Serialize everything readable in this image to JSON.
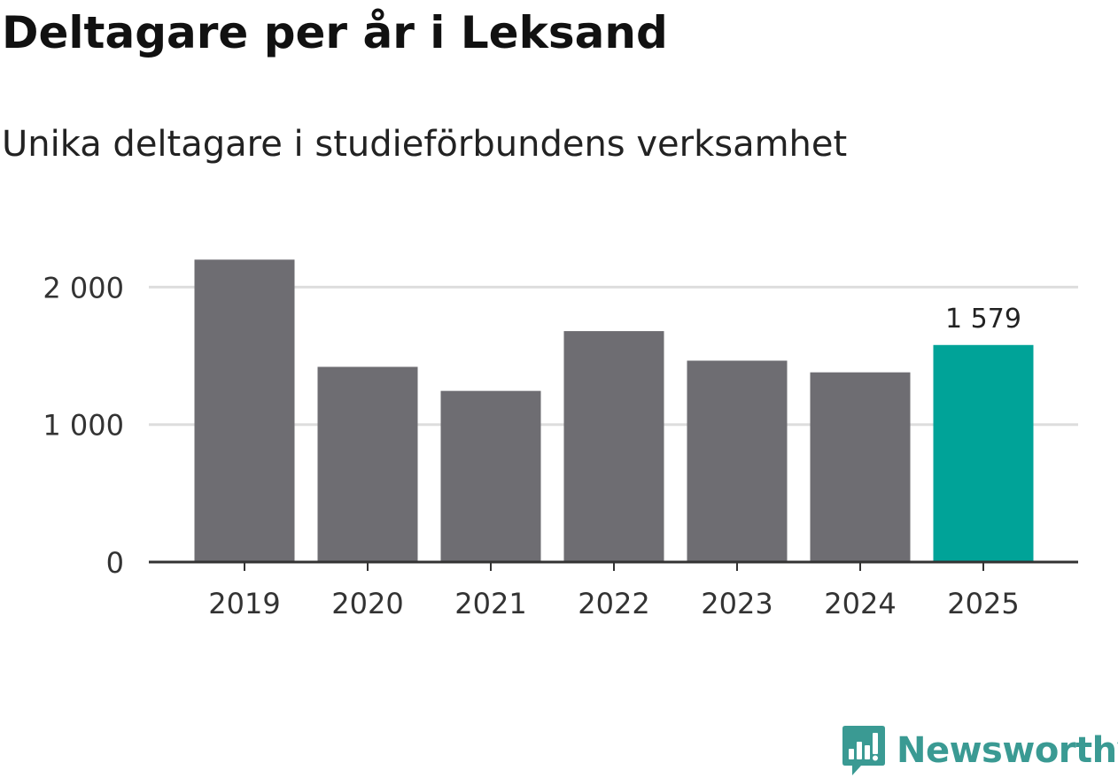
{
  "header": {
    "title": "Deltagare per år i Leksand",
    "subtitle": "Unika deltagare i studieförbundens verksamhet"
  },
  "chart_data": {
    "type": "bar",
    "categories": [
      "2019",
      "2020",
      "2021",
      "2022",
      "2023",
      "2024",
      "2025"
    ],
    "values": [
      2200,
      1420,
      1245,
      1680,
      1465,
      1380,
      1579
    ],
    "value_labels": [
      "",
      "",
      "",
      "",
      "",
      "",
      "1 579"
    ],
    "yticks": [
      0,
      1000,
      2000
    ],
    "ytick_labels": [
      "0",
      "1 000",
      "2 000"
    ],
    "ylim": [
      0,
      2400
    ],
    "grid": true,
    "colors": {
      "default_bar": "#6e6d72",
      "highlight_bar": "#00a398",
      "grid": "#dddddd",
      "axis": "#333333",
      "text": "#333333"
    },
    "highlight_index": 6,
    "title": "Deltagare per år i Leksand",
    "subtitle": "Unika deltagare i studieförbundens verksamhet"
  },
  "brand": {
    "name": "Newsworthy",
    "color": "#3a9a93",
    "icon": "bar-chart-chat-icon"
  }
}
